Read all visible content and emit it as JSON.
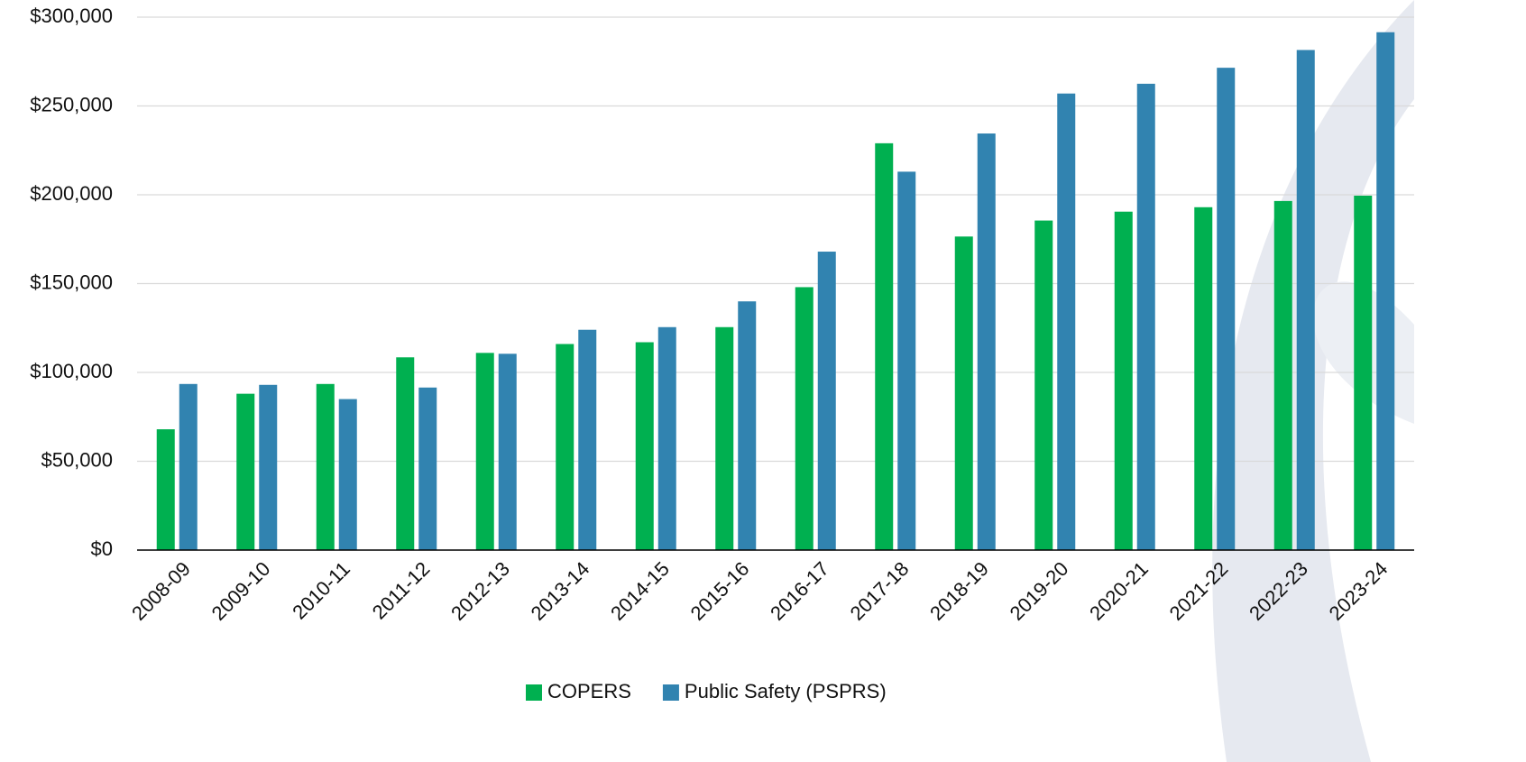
{
  "chart_data": {
    "type": "bar",
    "categories": [
      "2008-09",
      "2009-10",
      "2010-11",
      "2011-12",
      "2012-13",
      "2013-14",
      "2014-15",
      "2015-16",
      "2016-17",
      "2017-18",
      "2018-19",
      "2019-20",
      "2020-21",
      "2021-22",
      "2022-23",
      "2023-24"
    ],
    "series": [
      {
        "name": "COPERS",
        "color": "#00b050",
        "values": [
          68000,
          88000,
          93500,
          108500,
          111000,
          116000,
          117000,
          125500,
          148000,
          229000,
          176500,
          185500,
          190500,
          193000,
          196500,
          199500
        ]
      },
      {
        "name": "Public Safety (PSPRS)",
        "color": "#3183b0",
        "values": [
          93500,
          93000,
          85000,
          91500,
          110500,
          124000,
          125500,
          140000,
          168000,
          213000,
          234500,
          257000,
          262500,
          271500,
          281500,
          291500
        ]
      }
    ],
    "ylim": [
      0,
      300000
    ],
    "yticks": [
      {
        "value": 0,
        "label": "$0"
      },
      {
        "value": 50000,
        "label": "$50,000"
      },
      {
        "value": 100000,
        "label": "$100,000"
      },
      {
        "value": 150000,
        "label": "$150,000"
      },
      {
        "value": 200000,
        "label": "$200,000"
      },
      {
        "value": 250000,
        "label": "$250,000"
      },
      {
        "value": 300000,
        "label": "$300,000"
      }
    ],
    "grid": true,
    "legend": "bottom"
  }
}
